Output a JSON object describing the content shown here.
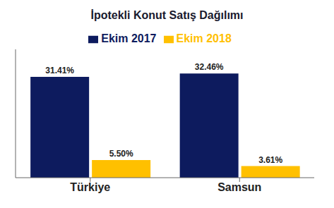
{
  "chart_data": {
    "type": "bar",
    "title": "İpotekli Konut Satış Dağılımı",
    "categories": [
      "Türkiye",
      "Samsun"
    ],
    "series": [
      {
        "name": "Ekim 2017",
        "color": "#0D1B5E",
        "values": [
          31.41,
          32.46
        ],
        "value_labels": [
          "31.41%",
          "32.46%"
        ]
      },
      {
        "name": "Ekim 2018",
        "color": "#FFC000",
        "values": [
          5.5,
          3.61
        ],
        "value_labels": [
          "5.50%",
          "3.61%"
        ]
      }
    ],
    "ylim": [
      0,
      40
    ],
    "data_labels": true,
    "legend": "top",
    "tick_labels": "x",
    "grid": false
  }
}
